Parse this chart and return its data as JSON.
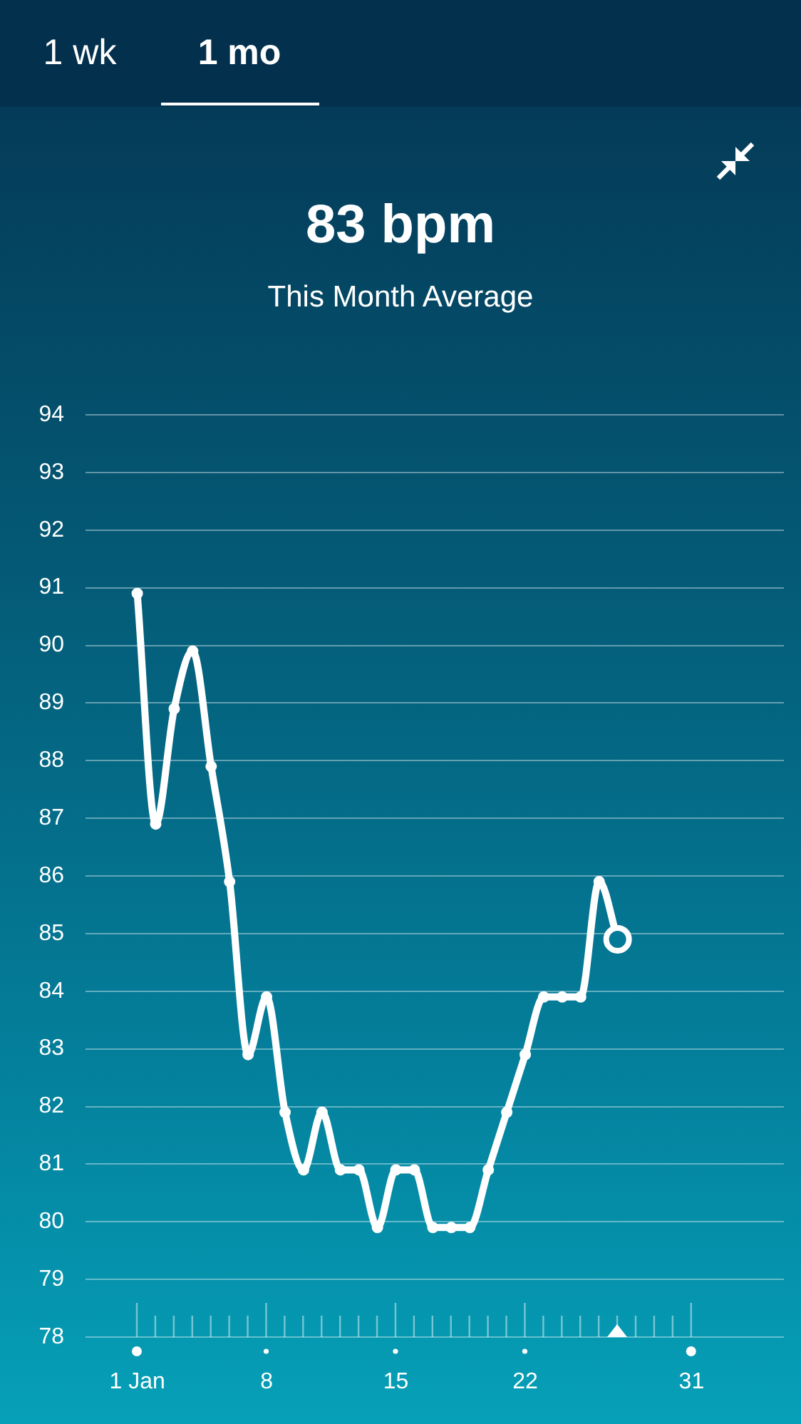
{
  "chart_data": {
    "type": "line",
    "title": "83 bpm",
    "subtitle": "This Month Average",
    "annotations": [
      "1 wk",
      "1 mo"
    ],
    "x": [
      1,
      2,
      3,
      4,
      5,
      6,
      7,
      8,
      9,
      10,
      11,
      12,
      13,
      14,
      15,
      16,
      17,
      18,
      19,
      20,
      21,
      22,
      23,
      24,
      25,
      26,
      27
    ],
    "values": [
      90.9,
      86.9,
      88.9,
      89.9,
      87.9,
      85.9,
      82.9,
      83.9,
      81.9,
      80.9,
      81.9,
      80.9,
      80.9,
      79.9,
      80.9,
      80.9,
      79.9,
      79.9,
      79.9,
      80.9,
      81.9,
      82.9,
      83.9,
      83.9,
      83.9,
      85.9,
      84.9
    ],
    "color": "#ffffff",
    "xlim": [
      -1.8,
      36
    ],
    "xticks": [
      {
        "value": 1,
        "label": "1 Jan"
      },
      {
        "value": 2,
        "label": null
      },
      {
        "value": 3,
        "label": null
      },
      {
        "value": 4,
        "label": null
      },
      {
        "value": 5,
        "label": null
      },
      {
        "value": 6,
        "label": null
      },
      {
        "value": 7,
        "label": null
      },
      8,
      {
        "value": 9,
        "label": null
      },
      {
        "value": 10,
        "label": null
      },
      {
        "value": 11,
        "label": null
      },
      {
        "value": 12,
        "label": null
      },
      {
        "value": 13,
        "label": null
      },
      {
        "value": 14,
        "label": null
      },
      15,
      {
        "value": 16,
        "label": null
      },
      {
        "value": 17,
        "label": null
      },
      {
        "value": 18,
        "label": null
      },
      {
        "value": 19,
        "label": null
      },
      {
        "value": 20,
        "label": null
      },
      {
        "value": 21,
        "label": null
      },
      22,
      {
        "value": 23,
        "label": null
      },
      {
        "value": 24,
        "label": null
      },
      {
        "value": 25,
        "label": null
      },
      {
        "value": 26,
        "label": null
      },
      {
        "value": 27,
        "label": null
      },
      {
        "value": 28,
        "label": null
      },
      {
        "value": 29,
        "label": null
      },
      {
        "value": 30,
        "label": null
      },
      31
    ],
    "ylim": [
      78,
      94
    ],
    "yticks": [
      78,
      79,
      80,
      81,
      82,
      83,
      84,
      85,
      86,
      87,
      88,
      89,
      90,
      91,
      92,
      93,
      94
    ],
    "grid": "y",
    "marker": "circle",
    "line_style": "solid",
    "legend": false
  }
}
